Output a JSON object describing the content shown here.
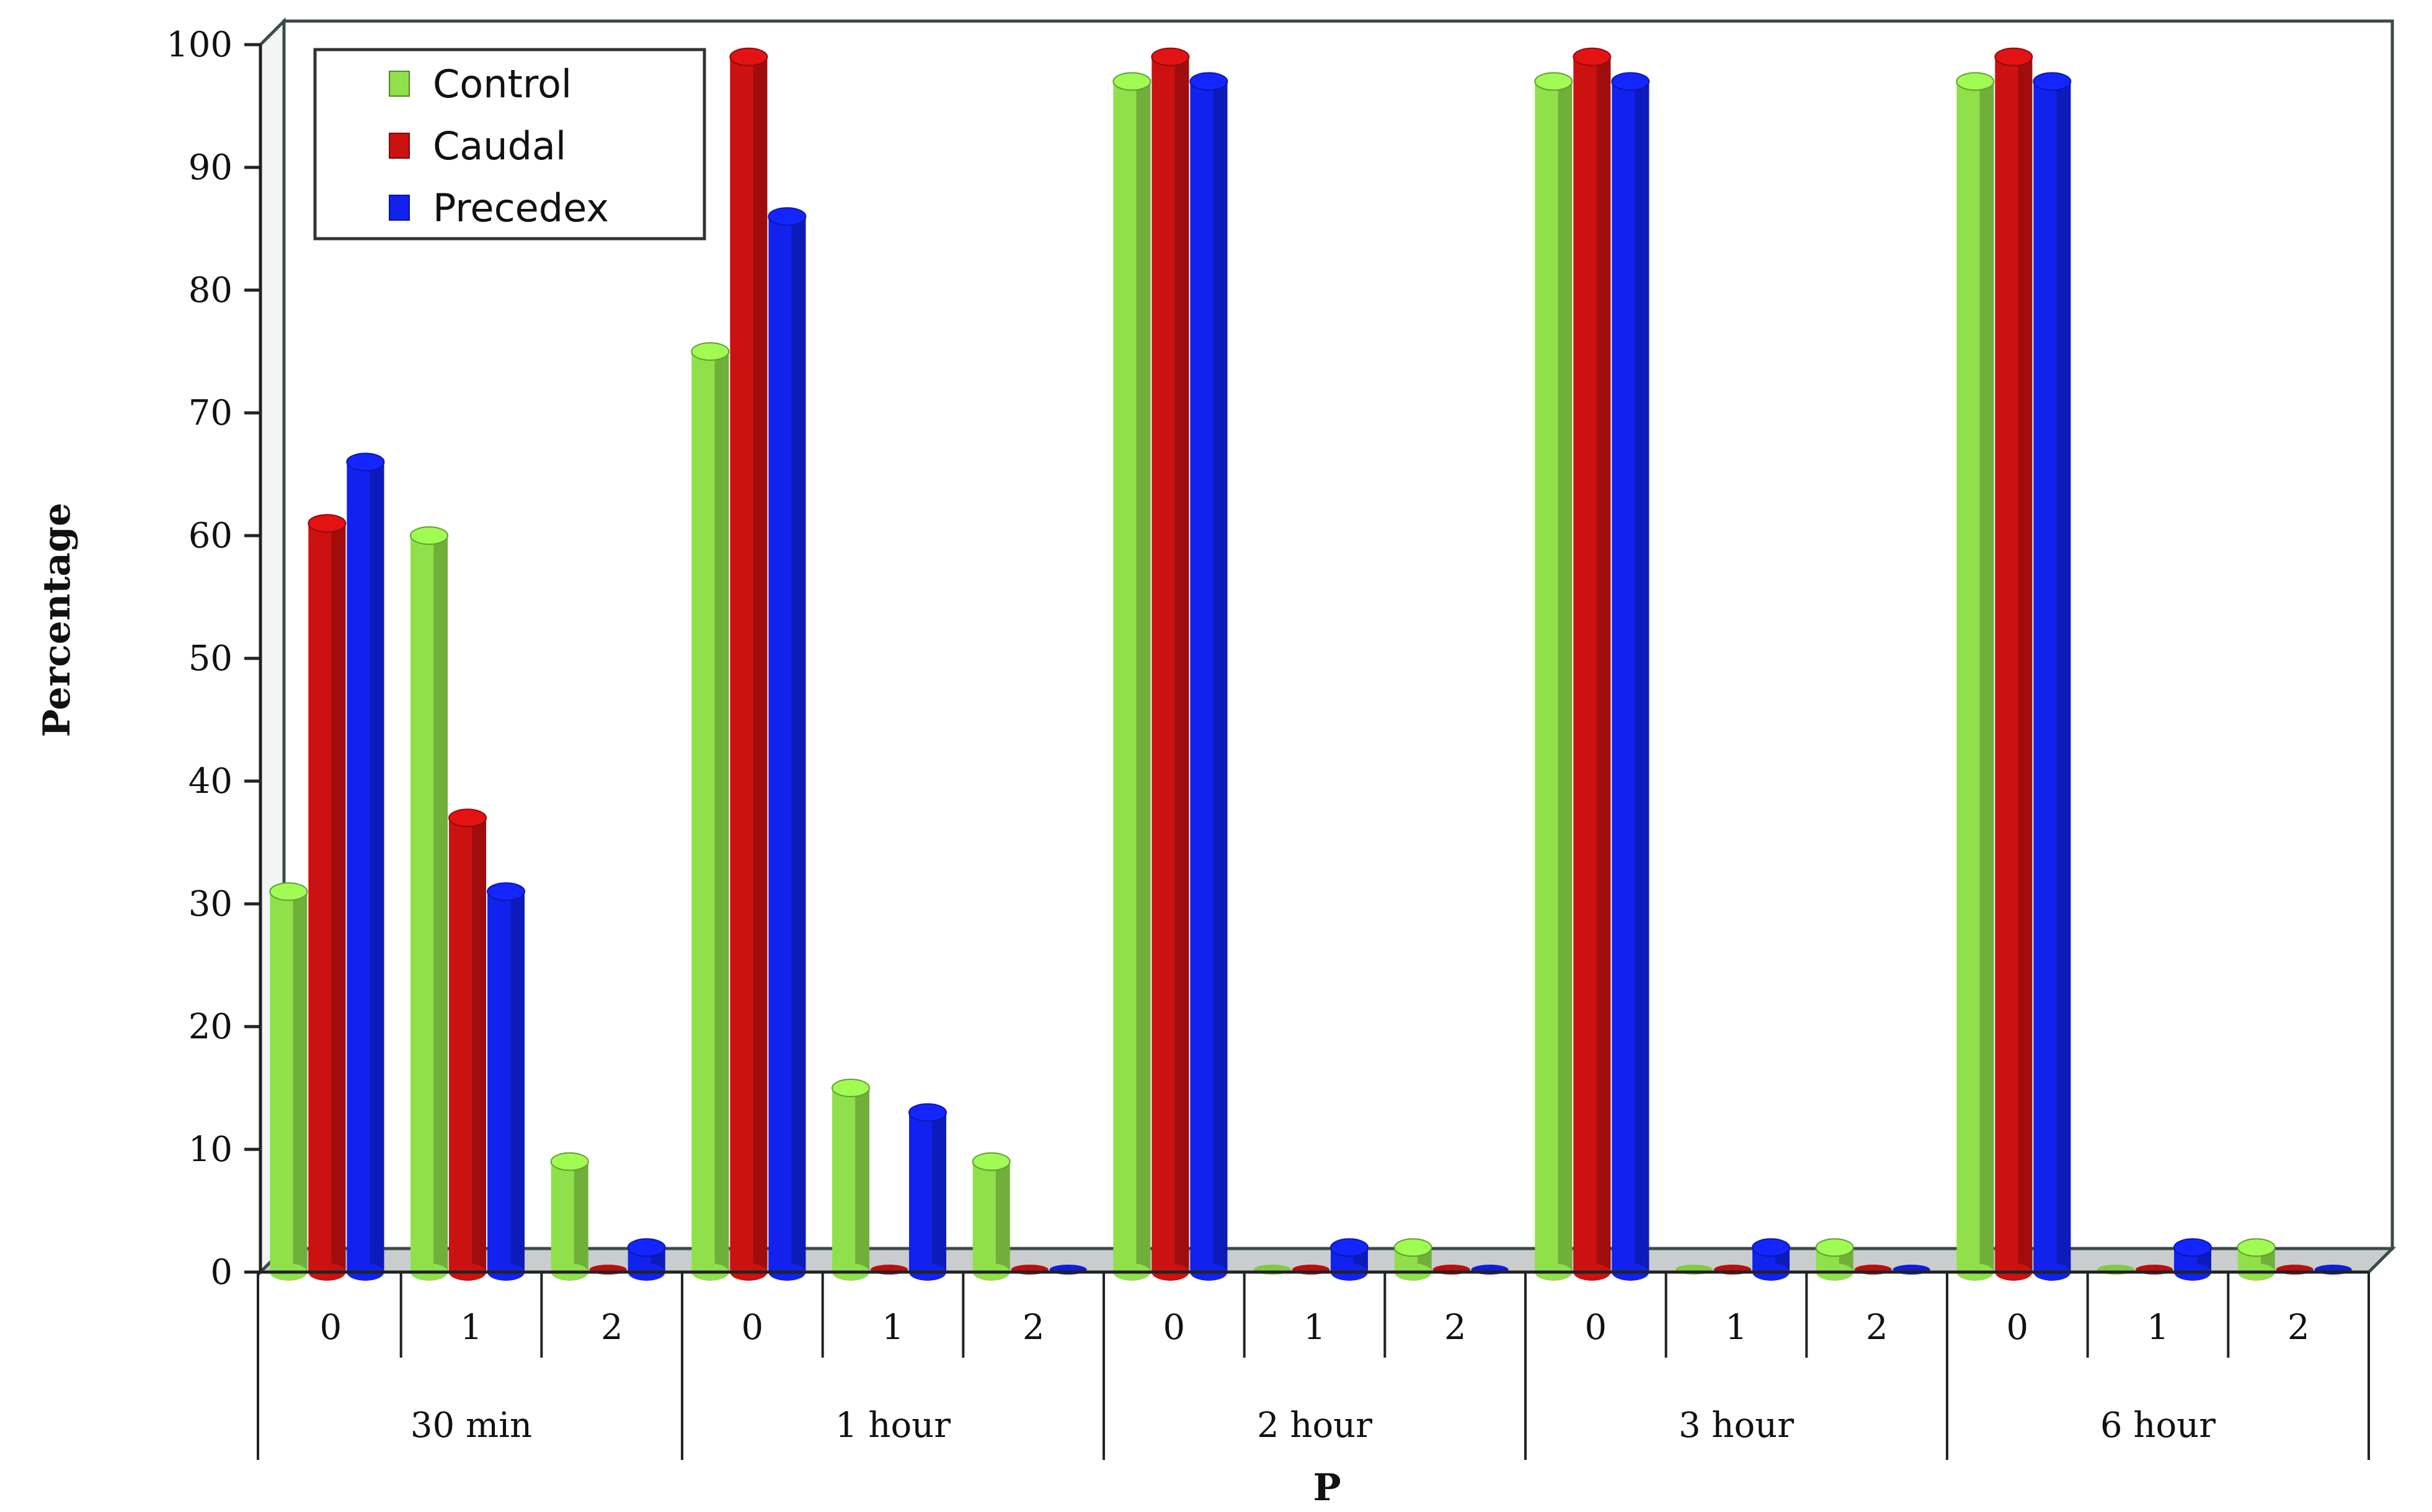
{
  "chart_data": {
    "type": "bar",
    "ylabel": "Percentage",
    "xlabel": "P",
    "ylim": [
      0,
      100
    ],
    "yticks": [
      0,
      10,
      20,
      30,
      40,
      50,
      60,
      70,
      80,
      90,
      100
    ],
    "groups": [
      "30 min",
      "1 hour",
      "2 hour",
      "3 hour",
      "6 hour"
    ],
    "categories": [
      "0",
      "1",
      "2"
    ],
    "legend_position": "top-left",
    "grid": false,
    "series": [
      {
        "name": "Control",
        "color": "#8FE04A",
        "values": [
          [
            31,
            60,
            9
          ],
          [
            75,
            15,
            9
          ],
          [
            97,
            0,
            2
          ],
          [
            97,
            0,
            2
          ],
          [
            97,
            0,
            2
          ]
        ]
      },
      {
        "name": "Caudal",
        "color": "#CC1111",
        "values": [
          [
            61,
            37,
            0
          ],
          [
            99,
            0,
            0
          ],
          [
            99,
            0,
            0
          ],
          [
            99,
            0,
            0
          ],
          [
            99,
            0,
            0
          ]
        ]
      },
      {
        "name": "Precedex",
        "color": "#1122EE",
        "values": [
          [
            66,
            31,
            2
          ],
          [
            86,
            13,
            0
          ],
          [
            97,
            2,
            0
          ],
          [
            97,
            2,
            0
          ],
          [
            97,
            2,
            0
          ]
        ]
      }
    ]
  }
}
